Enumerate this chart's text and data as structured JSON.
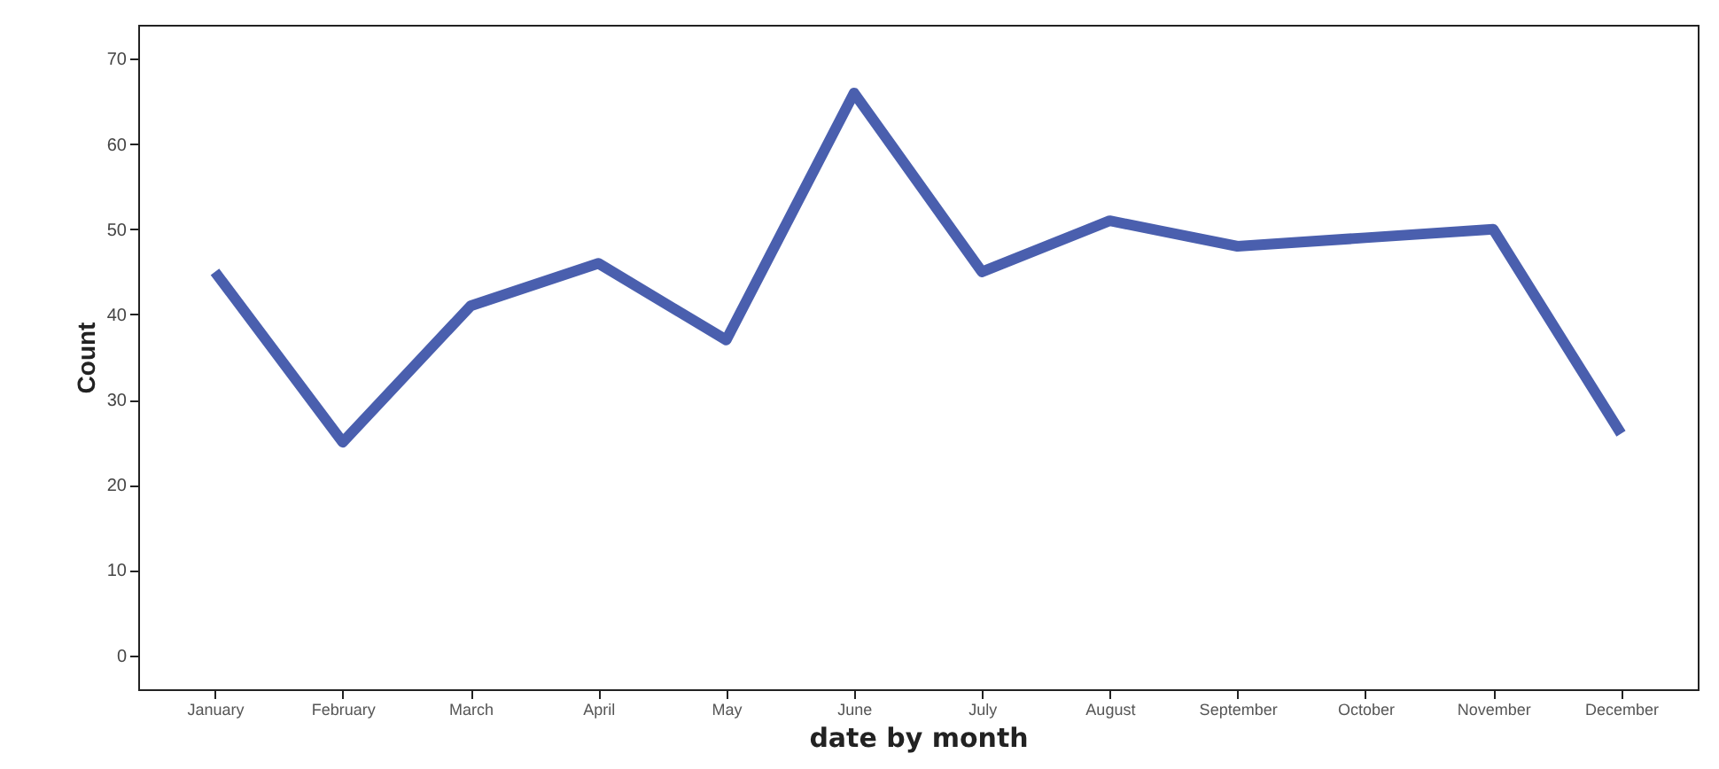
{
  "chart_data": {
    "type": "line",
    "xlabel": "date by month",
    "ylabel": "Count",
    "categories": [
      "January",
      "February",
      "March",
      "April",
      "May",
      "June",
      "July",
      "August",
      "September",
      "October",
      "November",
      "December"
    ],
    "series": [
      {
        "color": "#4a5fae",
        "values": [
          45,
          25,
          41,
          46,
          37,
          66,
          45,
          51,
          48,
          49,
          50,
          26
        ]
      }
    ],
    "ylim": [
      -4,
      74
    ],
    "yticks": [
      0,
      10,
      20,
      30,
      40,
      50,
      60,
      70
    ],
    "grid": false,
    "marker": "none",
    "line_style": "solid"
  }
}
